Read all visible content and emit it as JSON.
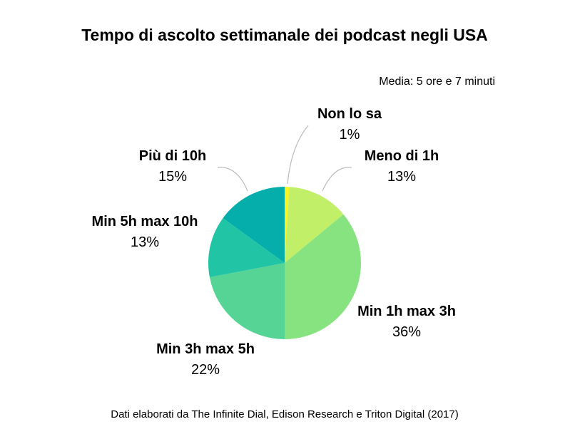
{
  "chart_data": {
    "type": "pie",
    "title": "Tempo di ascolto settimanale dei podcast negli USA",
    "subtitle": "Media: 5 ore e 7 minuti",
    "source": "Dati elaborati da The Infinite Dial, Edison Research e Triton Digital (2017)",
    "slices": [
      {
        "label": "Non lo sa",
        "value": 1,
        "display": "1%",
        "color": "#f5f52a"
      },
      {
        "label": "Meno di 1h",
        "value": 13,
        "display": "13%",
        "color": "#c2ef68"
      },
      {
        "label": "Min 1h max 3h",
        "value": 36,
        "display": "36%",
        "color": "#86e37f"
      },
      {
        "label": "Min 3h max 5h",
        "value": 22,
        "display": "22%",
        "color": "#55d495"
      },
      {
        "label": "Min 5h max 10h",
        "value": 13,
        "display": "13%",
        "color": "#22c4a6"
      },
      {
        "label": "Più di 10h",
        "value": 15,
        "display": "15%",
        "color": "#05aeaa"
      }
    ]
  }
}
